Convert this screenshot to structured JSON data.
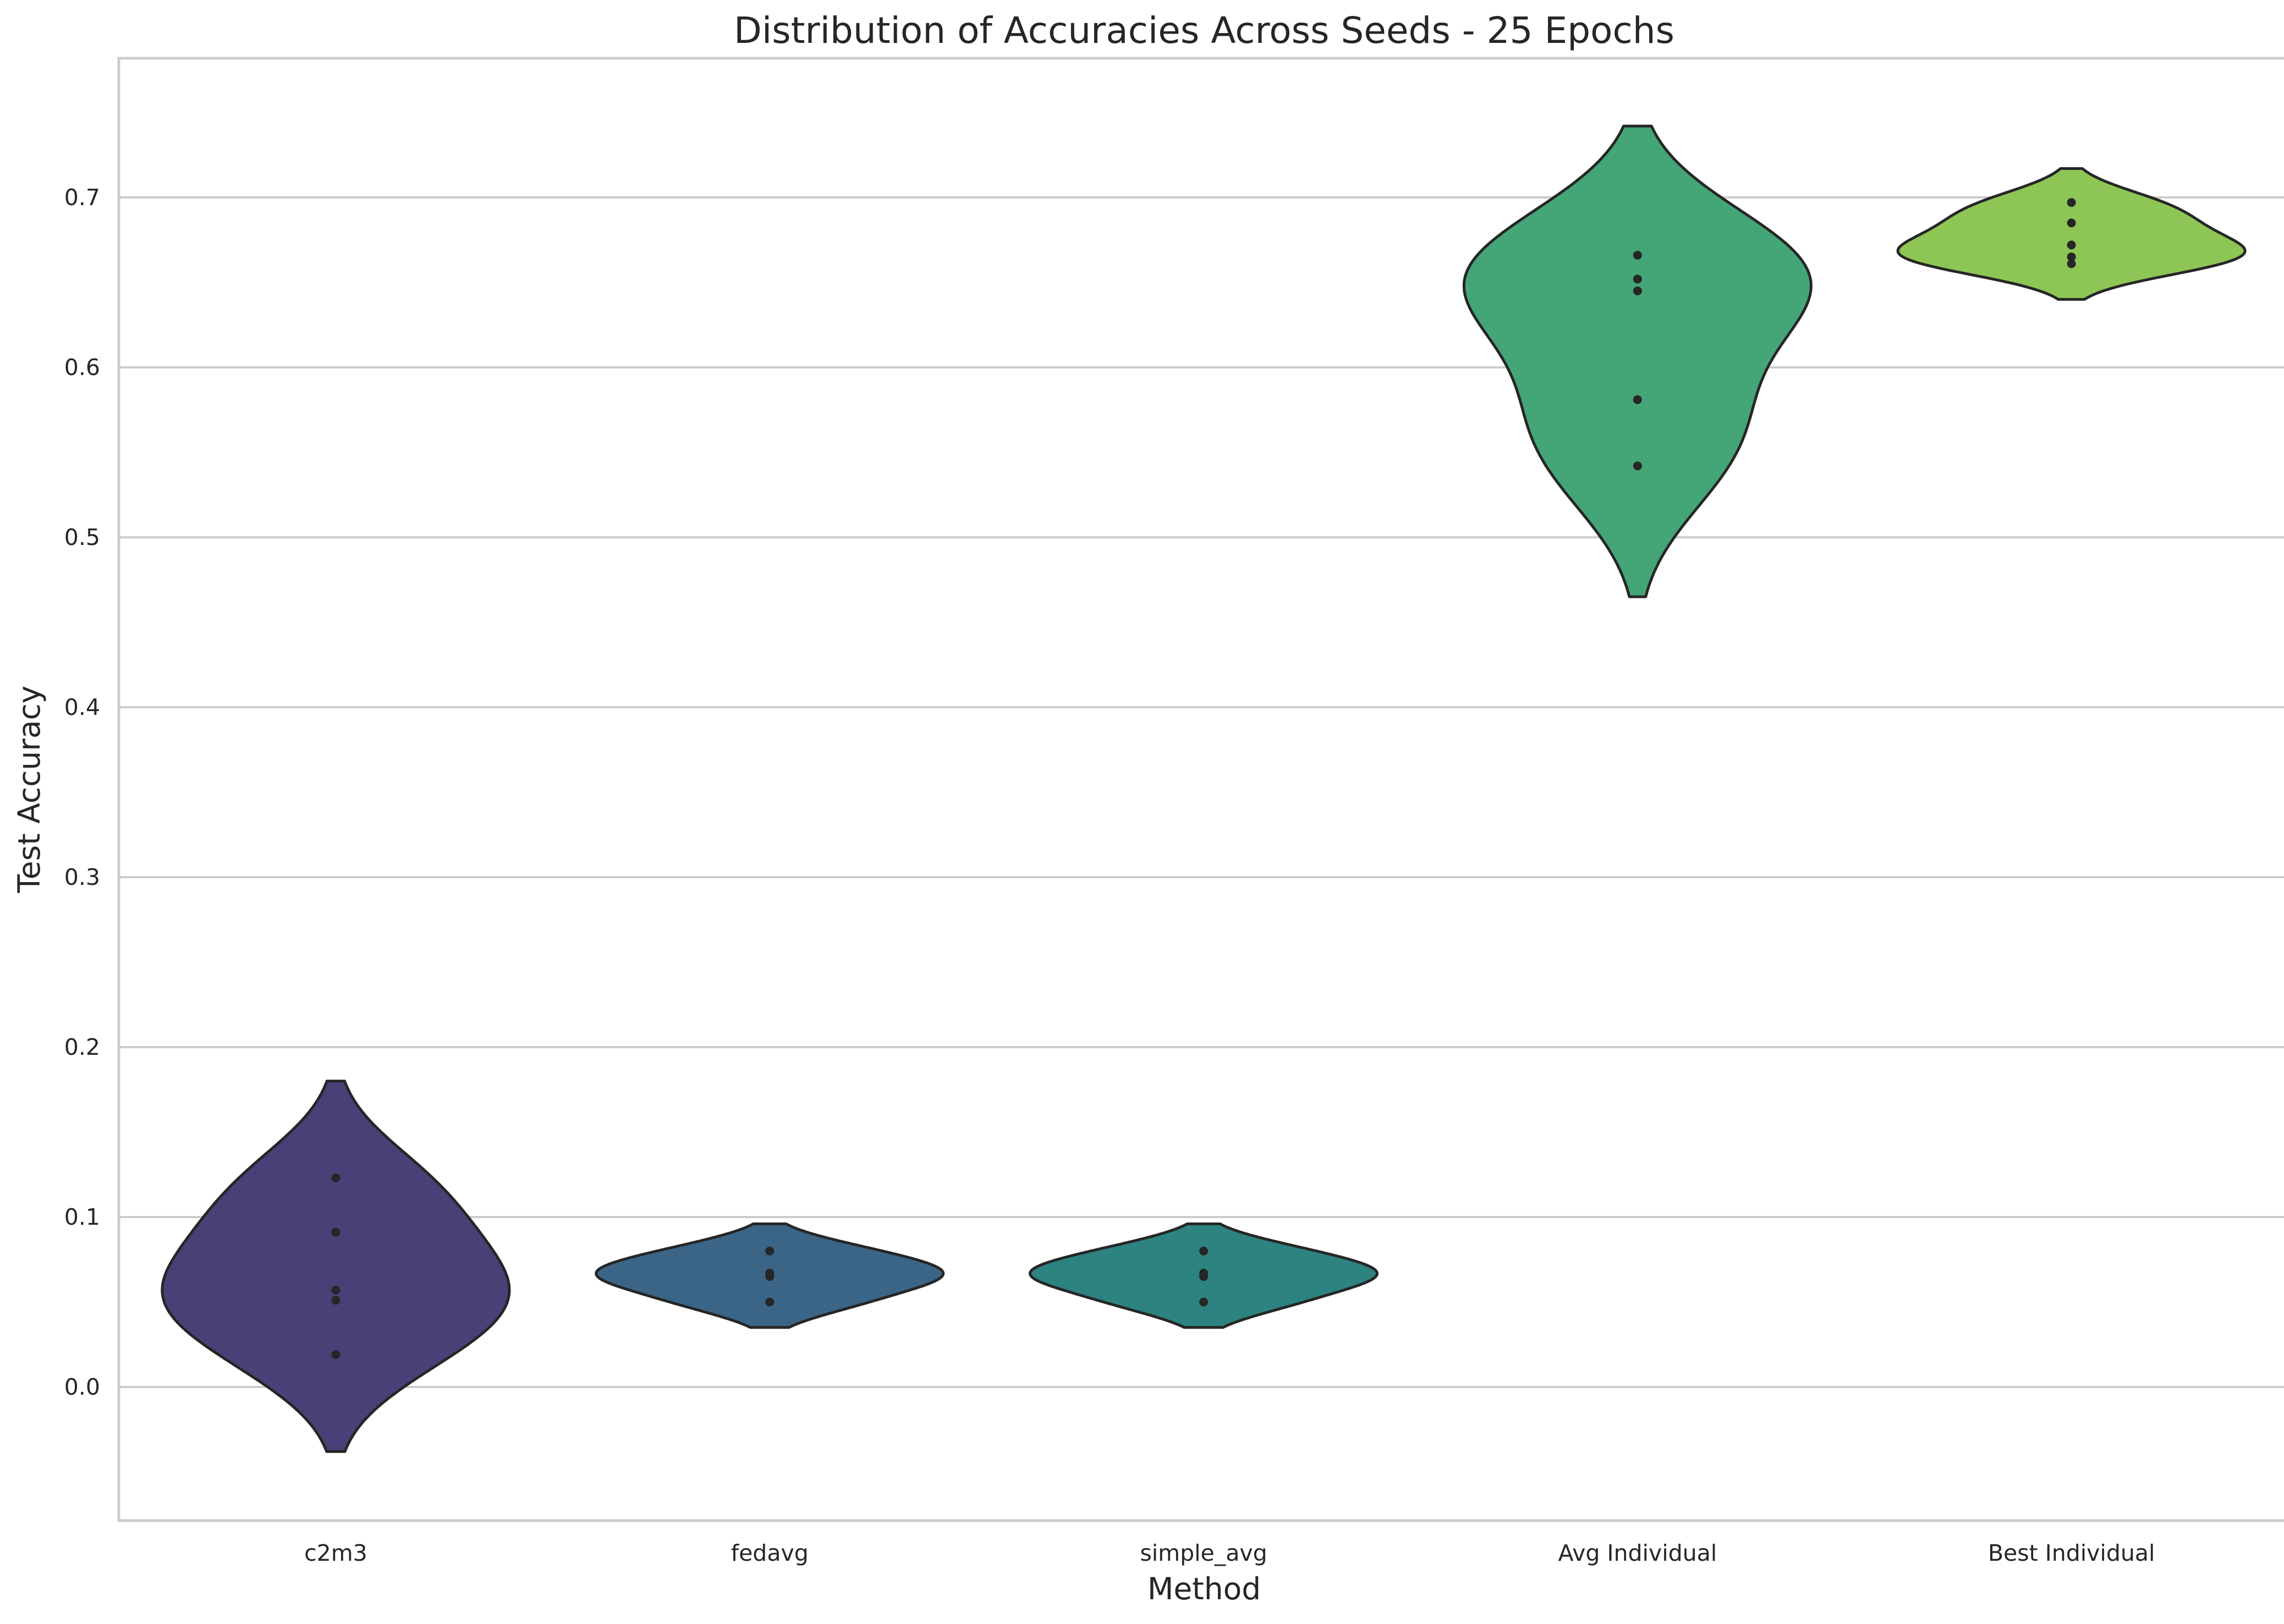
{
  "chart_data": {
    "type": "violin",
    "title": "Distribution of Accuracies Across Seeds - 25 Epochs",
    "xlabel": "Method",
    "ylabel": "Test Accuracy",
    "ylim": [
      -0.078,
      0.785
    ],
    "yticks": [
      "0.0",
      "0.1",
      "0.2",
      "0.3",
      "0.4",
      "0.5",
      "0.6",
      "0.7"
    ],
    "grid": "horizontal",
    "palette": "viridis",
    "inner": "point",
    "categories": [
      "c2m3",
      "fedavg",
      "simple_avg",
      "Avg Individual",
      "Best Individual"
    ],
    "series": [
      {
        "category": "c2m3",
        "color": "#4a4078",
        "points": [
          0.019,
          0.051,
          0.057,
          0.091,
          0.123
        ],
        "extent": [
          -0.038,
          0.18
        ]
      },
      {
        "category": "fedavg",
        "color": "#3b6586",
        "points": [
          0.05,
          0.065,
          0.067,
          0.08
        ],
        "extent": [
          0.035,
          0.096
        ]
      },
      {
        "category": "simple_avg",
        "color": "#2d8380",
        "points": [
          0.05,
          0.065,
          0.067,
          0.08
        ],
        "extent": [
          0.035,
          0.096
        ]
      },
      {
        "category": "Avg Individual",
        "color": "#44a676",
        "points": [
          0.542,
          0.581,
          0.645,
          0.652,
          0.666
        ],
        "extent": [
          0.465,
          0.742
        ]
      },
      {
        "category": "Best Individual",
        "color": "#8ec656",
        "points": [
          0.661,
          0.665,
          0.672,
          0.685,
          0.697
        ],
        "extent": [
          0.64,
          0.717
        ]
      }
    ]
  }
}
